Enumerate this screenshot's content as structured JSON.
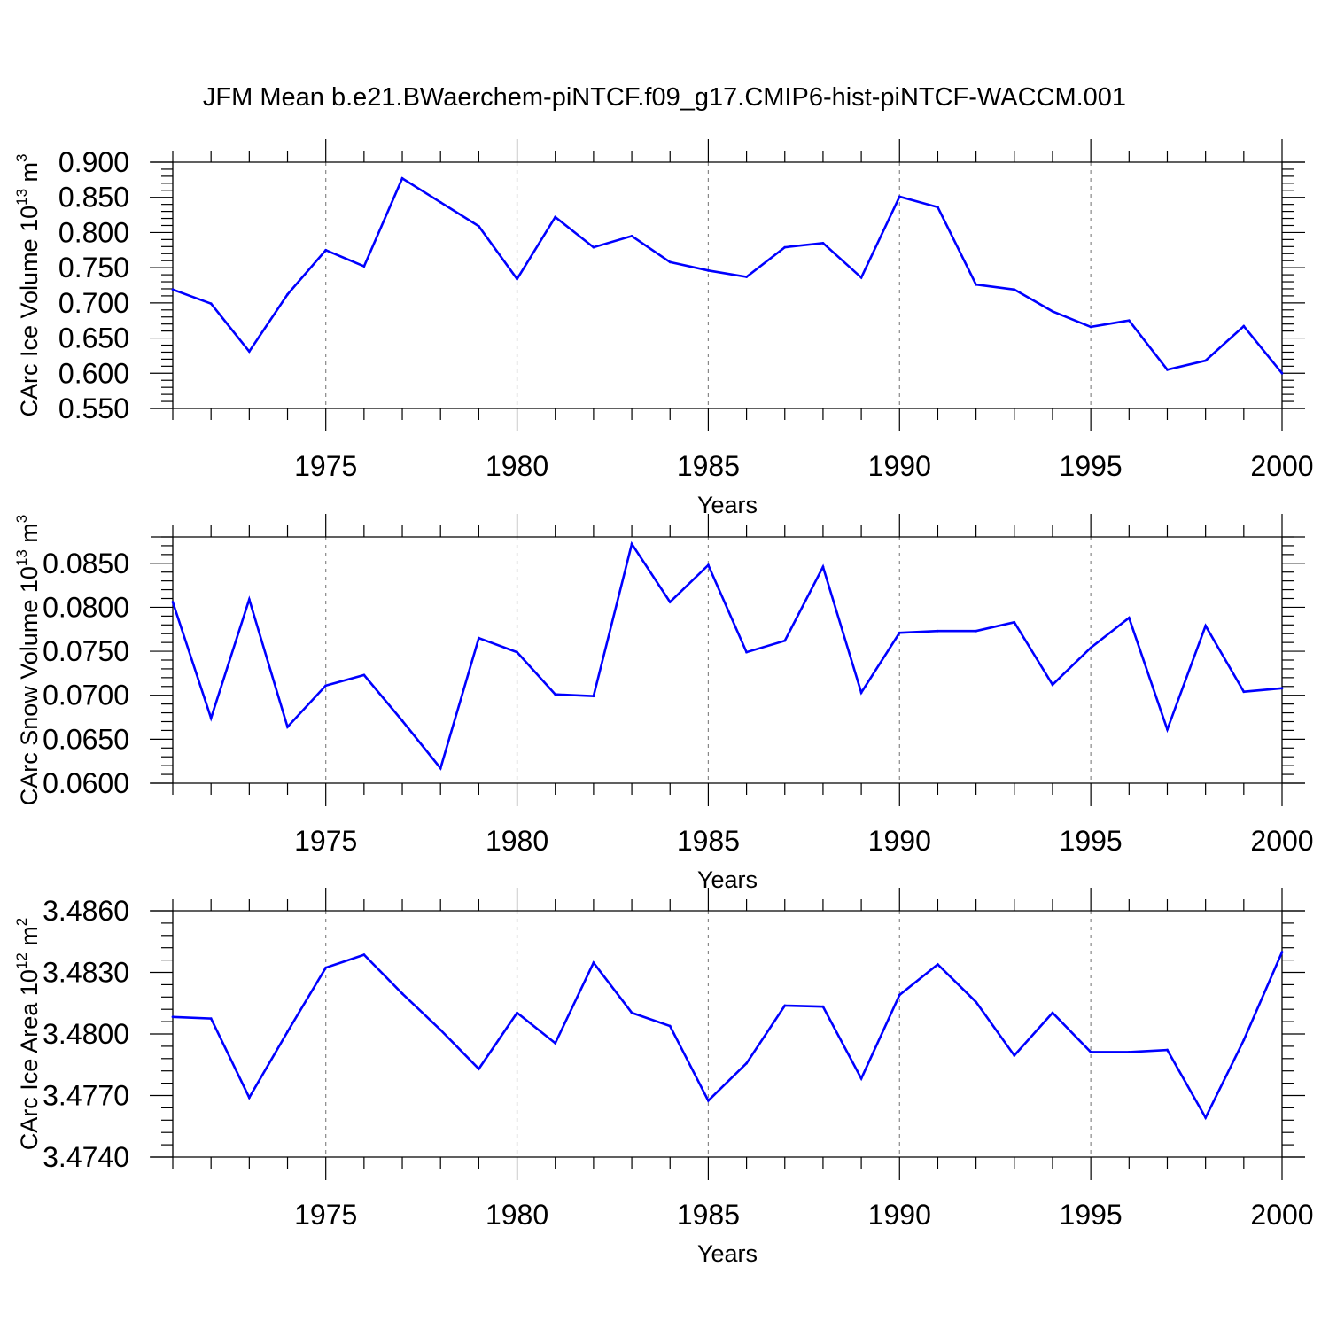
{
  "figure": {
    "title": "JFM Mean b.e21.BWaerchem-piNTCF.f09_g17.CMIP6-hist-piNTCF-WACCM.001"
  },
  "colors": {
    "series": "#0000ff",
    "axis": "#000000",
    "grid": "#888888"
  },
  "chart_data": [
    {
      "type": "line",
      "title": "",
      "xlabel": "Years",
      "ylabel": "CArc Ice Volume 10",
      "ylabel_sup": "13",
      "ylabel_unit": "m",
      "ylabel_unit_sup": "3",
      "xlim": [
        1971,
        2000
      ],
      "ylim": [
        0.55,
        0.9
      ],
      "xticks": [
        1975,
        1980,
        1985,
        1990,
        1995,
        2000
      ],
      "xtick_labels": [
        "1975",
        "1980",
        "1985",
        "1990",
        "1995",
        "2000"
      ],
      "yticks": [
        0.55,
        0.6,
        0.65,
        0.7,
        0.75,
        0.8,
        0.85,
        0.9
      ],
      "ytick_labels": [
        "0.550",
        "0.600",
        "0.650",
        "0.700",
        "0.750",
        "0.800",
        "0.850",
        "0.900"
      ],
      "grid": "vertical dashed at major x ticks",
      "x": [
        1971,
        1972,
        1973,
        1974,
        1975,
        1976,
        1977,
        1978,
        1979,
        1980,
        1981,
        1982,
        1983,
        1984,
        1985,
        1986,
        1987,
        1988,
        1989,
        1990,
        1991,
        1992,
        1993,
        1994,
        1995,
        1996,
        1997,
        1998,
        1999,
        2000
      ],
      "values": [
        0.719,
        0.699,
        0.631,
        0.712,
        0.775,
        0.752,
        0.877,
        0.843,
        0.809,
        0.734,
        0.822,
        0.779,
        0.795,
        0.758,
        0.746,
        0.737,
        0.779,
        0.785,
        0.736,
        0.851,
        0.836,
        0.726,
        0.719,
        0.688,
        0.666,
        0.675,
        0.605,
        0.618,
        0.667,
        0.6
      ]
    },
    {
      "type": "line",
      "title": "",
      "xlabel": "Years",
      "ylabel": "CArc Snow Volume 10",
      "ylabel_sup": "13",
      "ylabel_unit": "m",
      "ylabel_unit_sup": "3",
      "xlim": [
        1971,
        2000
      ],
      "ylim": [
        0.06,
        0.088
      ],
      "xticks": [
        1975,
        1980,
        1985,
        1990,
        1995,
        2000
      ],
      "xtick_labels": [
        "1975",
        "1980",
        "1985",
        "1990",
        "1995",
        "2000"
      ],
      "yticks": [
        0.06,
        0.065,
        0.07,
        0.075,
        0.08,
        0.085
      ],
      "ytick_labels": [
        "0.0600",
        "0.0650",
        "0.0700",
        "0.0750",
        "0.0800",
        "0.0850"
      ],
      "grid": "vertical dashed at major x ticks",
      "x": [
        1971,
        1972,
        1973,
        1974,
        1975,
        1976,
        1977,
        1978,
        1979,
        1980,
        1981,
        1982,
        1983,
        1984,
        1985,
        1986,
        1987,
        1988,
        1989,
        1990,
        1991,
        1992,
        1993,
        1994,
        1995,
        1996,
        1997,
        1998,
        1999,
        2000
      ],
      "values": [
        0.0806,
        0.0674,
        0.0809,
        0.0664,
        0.0711,
        0.0723,
        0.0671,
        0.0617,
        0.0765,
        0.0749,
        0.0701,
        0.0699,
        0.0872,
        0.0806,
        0.0848,
        0.0749,
        0.0762,
        0.0846,
        0.0703,
        0.0771,
        0.0773,
        0.0773,
        0.0783,
        0.0712,
        0.0754,
        0.0788,
        0.0661,
        0.0779,
        0.0704,
        0.0708
      ]
    },
    {
      "type": "line",
      "title": "",
      "xlabel": "Years",
      "ylabel": "CArc Ice Area 10",
      "ylabel_sup": "12",
      "ylabel_unit": "m",
      "ylabel_unit_sup": "2",
      "xlim": [
        1971,
        2000
      ],
      "ylim": [
        3.474,
        3.486
      ],
      "xticks": [
        1975,
        1980,
        1985,
        1990,
        1995,
        2000
      ],
      "xtick_labels": [
        "1975",
        "1980",
        "1985",
        "1990",
        "1995",
        "2000"
      ],
      "yticks": [
        3.474,
        3.477,
        3.48,
        3.483,
        3.486
      ],
      "ytick_labels": [
        "3.4740",
        "3.4770",
        "3.4800",
        "3.4830",
        "3.4860"
      ],
      "grid": "vertical dashed at major x ticks",
      "x": [
        1971,
        1972,
        1973,
        1974,
        1975,
        1976,
        1977,
        1978,
        1979,
        1980,
        1981,
        1982,
        1983,
        1984,
        1985,
        1986,
        1987,
        1988,
        1989,
        1990,
        1991,
        1992,
        1993,
        1994,
        1995,
        1996,
        1997,
        1998,
        1999,
        2000
      ],
      "values": [
        3.48083,
        3.48075,
        3.4769,
        3.48011,
        3.48323,
        3.48386,
        3.48197,
        3.4802,
        3.4783,
        3.48103,
        3.47955,
        3.48347,
        3.48103,
        3.48039,
        3.47675,
        3.47857,
        3.48138,
        3.48133,
        3.47783,
        3.4819,
        3.48339,
        3.48156,
        3.47895,
        3.48103,
        3.47912,
        3.47912,
        3.47922,
        3.47592,
        3.4797,
        3.48399
      ]
    }
  ]
}
